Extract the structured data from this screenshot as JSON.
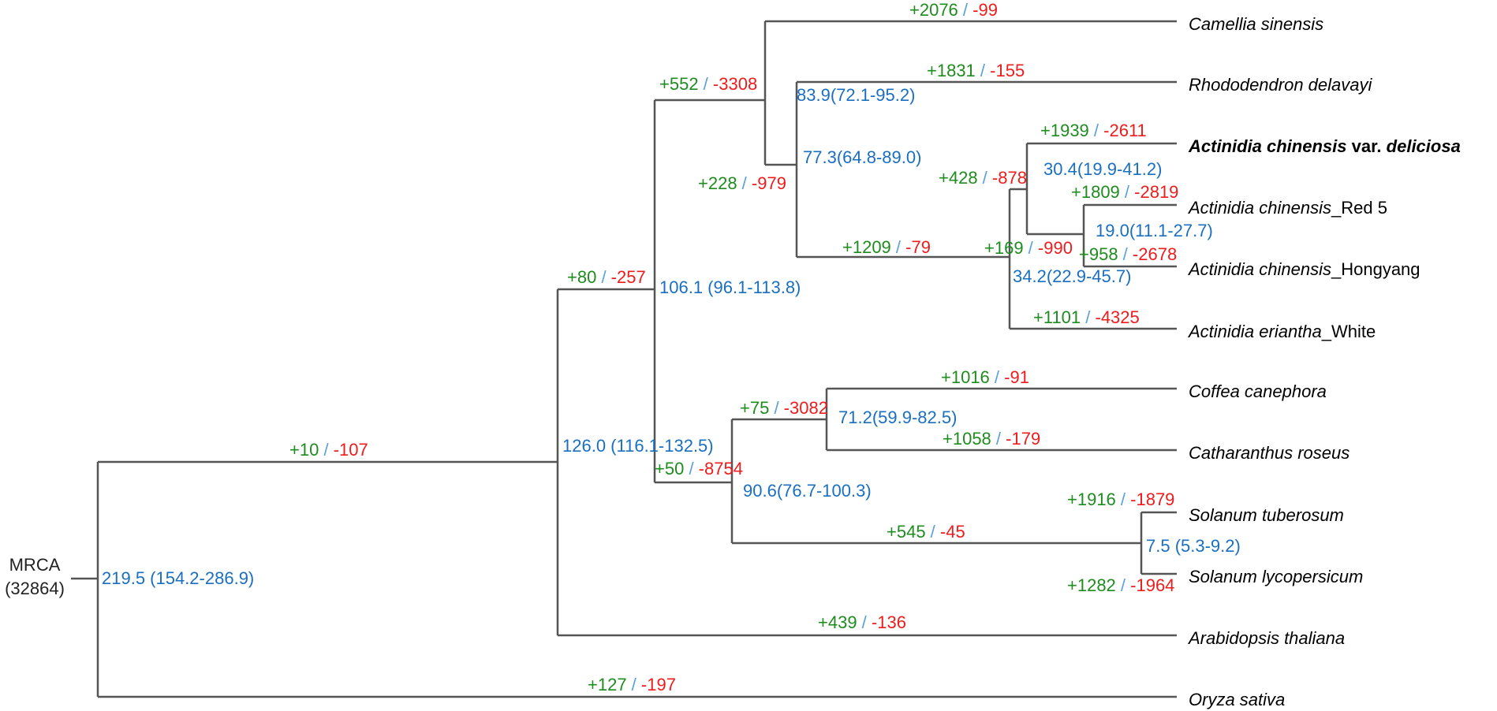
{
  "root": {
    "name": "MRCA",
    "count": "(32864)"
  },
  "colors": {
    "gain": "#1e8c1e",
    "loss": "#ee1c1c",
    "separator": "#5aa0dc",
    "age": "#1a6fc1",
    "branch": "#555555"
  },
  "species": [
    {
      "id": "camellia",
      "parts": [
        {
          "t": "Camellia sinensis",
          "i": true
        }
      ]
    },
    {
      "id": "rhododendron",
      "parts": [
        {
          "t": "Rhododendron delavayi",
          "i": true
        }
      ]
    },
    {
      "id": "deliciosa",
      "bold": true,
      "parts": [
        {
          "t": "Actinidia chinensis",
          "i": true
        },
        {
          "t": " var. ",
          "i": false
        },
        {
          "t": "deliciosa",
          "i": true
        }
      ]
    },
    {
      "id": "red5",
      "parts": [
        {
          "t": "Actinidia chinensis",
          "i": true
        },
        {
          "t": "_Red 5",
          "i": false
        }
      ]
    },
    {
      "id": "hongyang",
      "parts": [
        {
          "t": "Actinidia chinensis",
          "i": true
        },
        {
          "t": "_Hongyang",
          "i": false
        }
      ]
    },
    {
      "id": "eriantha",
      "parts": [
        {
          "t": "Actinidia eriantha",
          "i": true
        },
        {
          "t": "_White",
          "i": false
        }
      ]
    },
    {
      "id": "coffea",
      "parts": [
        {
          "t": "Coffea canephora",
          "i": true
        }
      ]
    },
    {
      "id": "catharanthus",
      "parts": [
        {
          "t": "Catharanthus roseus",
          "i": true
        }
      ]
    },
    {
      "id": "tuberosum",
      "parts": [
        {
          "t": "Solanum tuberosum",
          "i": true
        }
      ]
    },
    {
      "id": "lycopersicum",
      "parts": [
        {
          "t": "Solanum lycopersicum",
          "i": true
        }
      ]
    },
    {
      "id": "arabidopsis",
      "parts": [
        {
          "t": "Arabidopsis thaliana",
          "i": true
        }
      ]
    },
    {
      "id": "oryza",
      "parts": [
        {
          "t": "Oryza sativa",
          "i": true
        }
      ]
    }
  ],
  "gene_family_changes": [
    {
      "branch": "camellia",
      "gain": "+2076",
      "loss": "-99"
    },
    {
      "branch": "rhododendron",
      "gain": "+1831",
      "loss": "-155"
    },
    {
      "branch": "deliciosa",
      "gain": "+1939",
      "loss": "-2611"
    },
    {
      "branch": "red5",
      "gain": "+1809",
      "loss": "-2819"
    },
    {
      "branch": "hongyang",
      "gain": "+958",
      "loss": "-2678"
    },
    {
      "branch": "red5-hongyang",
      "gain": "+169",
      "loss": "-990"
    },
    {
      "branch": "chinensis",
      "gain": "+428",
      "loss": "-878"
    },
    {
      "branch": "eriantha",
      "gain": "+1101",
      "loss": "-4325"
    },
    {
      "branch": "actinidia",
      "gain": "+1209",
      "loss": "-79"
    },
    {
      "branch": "rhododendron-actinidia",
      "gain": "+228",
      "loss": "-979"
    },
    {
      "branch": "ericales",
      "gain": "+552",
      "loss": "-3308"
    },
    {
      "branch": "asterids",
      "gain": "+80",
      "loss": "-257"
    },
    {
      "branch": "coffea",
      "gain": "+1016",
      "loss": "-91"
    },
    {
      "branch": "catharanthus",
      "gain": "+1058",
      "loss": "-179"
    },
    {
      "branch": "gentianales",
      "gain": "+75",
      "loss": "-3082"
    },
    {
      "branch": "tuberosum",
      "gain": "+1916",
      "loss": "-1879"
    },
    {
      "branch": "lycopersicum",
      "gain": "+1282",
      "loss": "-1964"
    },
    {
      "branch": "solanum",
      "gain": "+545",
      "loss": "-45"
    },
    {
      "branch": "lamiids",
      "gain": "+50",
      "loss": "-8754"
    },
    {
      "branch": "arabidopsis",
      "gain": "+439",
      "loss": "-136"
    },
    {
      "branch": "eudicots",
      "gain": "+10",
      "loss": "-107"
    },
    {
      "branch": "oryza",
      "gain": "+127",
      "loss": "-197"
    }
  ],
  "node_ages": [
    {
      "node": "ericales",
      "label": "83.9(72.1-95.2)"
    },
    {
      "node": "rhododendron-actinidia",
      "label": "77.3(64.8-89.0)"
    },
    {
      "node": "chinensis",
      "label": "30.4(19.9-41.2)"
    },
    {
      "node": "red5-hongyang",
      "label": "19.0(11.1-27.7)"
    },
    {
      "node": "actinidia",
      "label": "34.2(22.9-45.7)"
    },
    {
      "node": "asterids",
      "label": "106.1 (96.1-113.8)"
    },
    {
      "node": "gentianales",
      "label": "71.2(59.9-82.5)"
    },
    {
      "node": "eudicots",
      "label": "126.0 (116.1-132.5)"
    },
    {
      "node": "lamiids",
      "label": "90.6(76.7-100.3)"
    },
    {
      "node": "solanum",
      "label": "7.5 (5.3-9.2)"
    },
    {
      "node": "root",
      "label": "219.5 (154.2-286.9)"
    }
  ]
}
